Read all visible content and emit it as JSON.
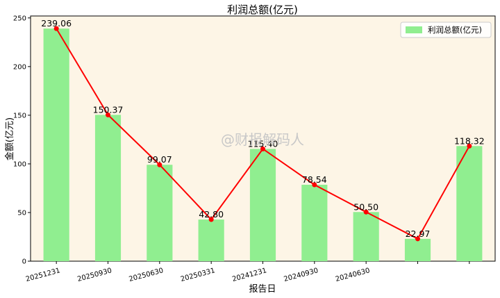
{
  "chart_data": {
    "type": "bar",
    "title": "利润总额(亿元)",
    "xlabel": "报告日",
    "ylabel": "金额(亿元)",
    "categories": [
      "20251231",
      "20250930",
      "20250630",
      "20250331",
      "20241231",
      "20240930",
      "20240630",
      "",
      ""
    ],
    "series": [
      {
        "name": "利润总额(亿元)",
        "values": [
          239.06,
          150.37,
          99.07,
          42.8,
          115.4,
          78.54,
          50.5,
          22.97,
          118.32
        ],
        "labels": [
          "239.06",
          "150.37",
          "99.07",
          "42.80",
          "115.40",
          "78.54",
          "50.50",
          "22.97",
          "118.32"
        ]
      }
    ],
    "ylim": [
      0,
      252
    ],
    "yticks": [
      0,
      50,
      100,
      150,
      200,
      250
    ],
    "grid": false,
    "legend": "top-right",
    "overlay_line": true,
    "colors": {
      "bar": "#90ee90",
      "line": "#ff0000",
      "marker": "#ff0000",
      "plot_bg": "#fdf5e6"
    }
  },
  "watermark": "@财报解码人"
}
